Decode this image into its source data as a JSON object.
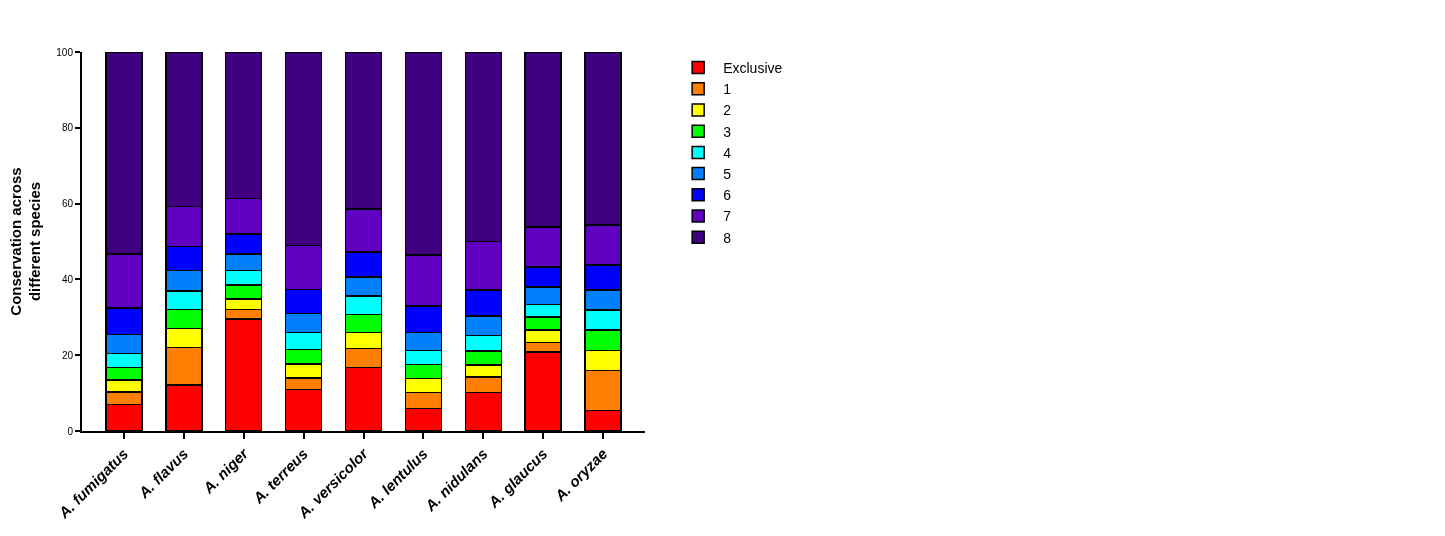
{
  "chart_data": {
    "type": "bar",
    "stacked": true,
    "ylabel": "Conservation across different species",
    "categories": [
      "A. fumigatus",
      "A. flavus",
      "A. niger",
      "A. terreus",
      "A. versicolor",
      "A. lentulus",
      "A. nidulans",
      "A. glaucus",
      "A. oryzae"
    ],
    "series": [
      {
        "name": "Exclusive",
        "color": "#ff0000",
        "values": [
          7,
          12.2,
          29.5,
          11,
          16.8,
          6,
          10.1,
          20.8,
          5.4
        ]
      },
      {
        "name": "1",
        "color": "#ff8000",
        "values": [
          3.3,
          9.8,
          2.5,
          3,
          5,
          4.2,
          4.1,
          2.6,
          10.5
        ]
      },
      {
        "name": "2",
        "color": "#ffff00",
        "values": [
          3.2,
          5,
          2.8,
          3.7,
          4.2,
          3.7,
          3.2,
          3.2,
          5.4
        ]
      },
      {
        "name": "3",
        "color": "#00ff00",
        "values": [
          3.2,
          5,
          3.7,
          3.8,
          4.8,
          3.7,
          3.7,
          3.5,
          5.3
        ]
      },
      {
        "name": "4",
        "color": "#00ffff",
        "values": [
          3.8,
          5,
          3.8,
          4.5,
          4.8,
          3.7,
          4.1,
          3.3,
          5.3
        ]
      },
      {
        "name": "5",
        "color": "#0080ff",
        "values": [
          5,
          5.3,
          4.4,
          5,
          5.1,
          4.7,
          5.2,
          4.6,
          5.3
        ]
      },
      {
        "name": "6",
        "color": "#0000ff",
        "values": [
          7,
          6.4,
          5.3,
          6.3,
          6.5,
          7,
          6.8,
          5.3,
          6.6
        ]
      },
      {
        "name": "7",
        "color": "#6000c0",
        "values": [
          14.2,
          10.6,
          9.3,
          11.7,
          11.4,
          13.4,
          12.8,
          10.5,
          10.6
        ]
      },
      {
        "name": "8",
        "color": "#400080",
        "values": [
          53.3,
          40.7,
          38.7,
          51,
          41.4,
          53.6,
          50,
          46.2,
          45.6
        ]
      }
    ],
    "ylim": [
      0,
      100
    ],
    "yticks": [
      0,
      20,
      40,
      60,
      80,
      100
    ],
    "grid": false,
    "legend": "top right"
  }
}
